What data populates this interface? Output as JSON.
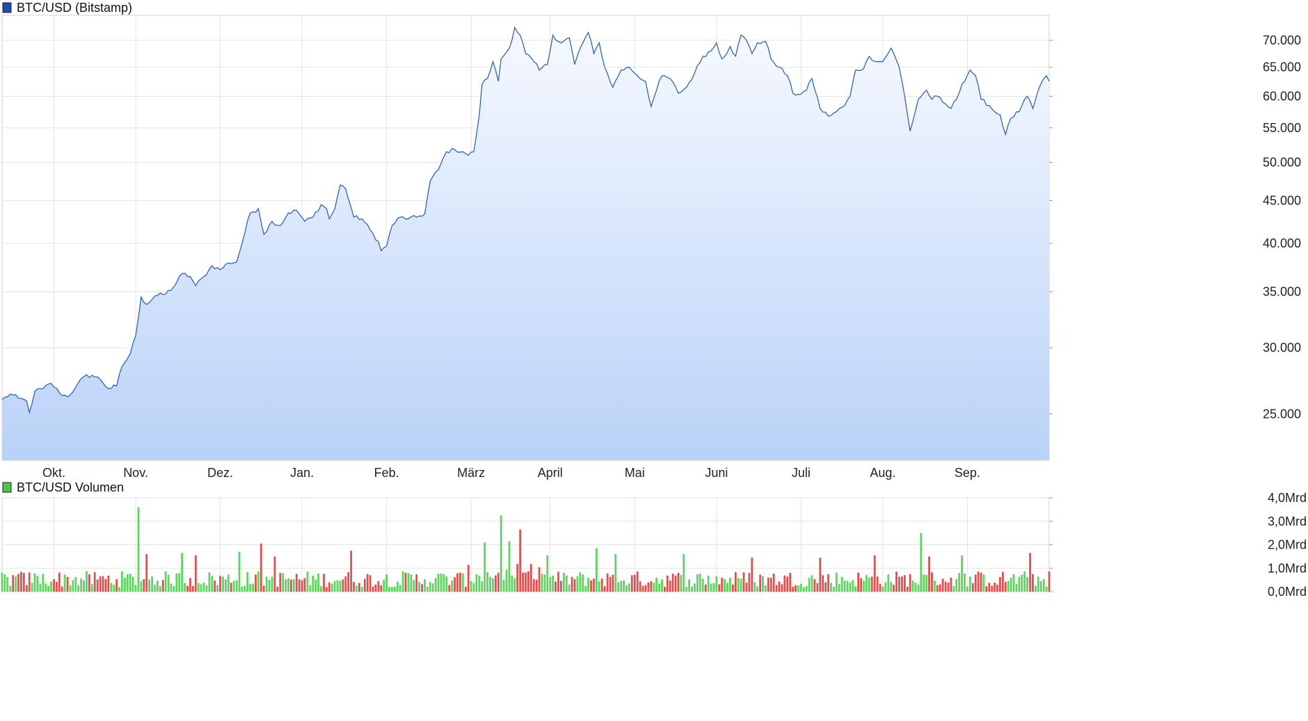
{
  "colors": {
    "price_line": "#2f64b4",
    "price_fill_top": "#f6f9fe",
    "price_fill_bottom": "#b9d2f8",
    "price_legend": "#1f4fa8",
    "volume_up": "#5fd35f",
    "volume_down": "#dc5050",
    "volume_legend": "#4cc44c",
    "grid": "#e3e3e3"
  },
  "chart_data": [
    {
      "type": "area",
      "title": "BTC/USD (Bitstamp)",
      "series": [
        {
          "name": "BTC/USD (Bitstamp)"
        }
      ],
      "y_scale": "log",
      "ylim": [
        22000,
        75000
      ],
      "y_ticks": [
        25000,
        30000,
        35000,
        40000,
        45000,
        50000,
        55000,
        60000,
        65000,
        70000
      ],
      "y_tick_labels": [
        "25.000",
        "30.000",
        "35.000",
        "40.000",
        "45.000",
        "50.000",
        "55.000",
        "60.000",
        "65.000",
        "70.000"
      ],
      "x_month_labels": [
        "Okt.",
        "Nov.",
        "Dez.",
        "Jan.",
        "Feb.",
        "März",
        "April",
        "Mai",
        "Juni",
        "Juli",
        "Aug.",
        "Sep."
      ],
      "x_month_start_day_index": [
        19,
        49,
        80,
        110,
        141,
        172,
        201,
        232,
        262,
        293,
        323,
        354
      ],
      "day_index_range": [
        0,
        376
      ],
      "anchors": [
        [
          0,
          26000
        ],
        [
          3,
          26400
        ],
        [
          6,
          26100
        ],
        [
          9,
          25900
        ],
        [
          10,
          25100
        ],
        [
          12,
          26600
        ],
        [
          15,
          26800
        ],
        [
          18,
          27200
        ],
        [
          21,
          26500
        ],
        [
          24,
          26200
        ],
        [
          27,
          26900
        ],
        [
          30,
          27700
        ],
        [
          33,
          27800
        ],
        [
          36,
          27500
        ],
        [
          39,
          26800
        ],
        [
          42,
          27000
        ],
        [
          44,
          28500
        ],
        [
          47,
          29500
        ],
        [
          49,
          31000
        ],
        [
          51,
          34500
        ],
        [
          53,
          33800
        ],
        [
          56,
          34600
        ],
        [
          60,
          34800
        ],
        [
          63,
          35500
        ],
        [
          66,
          36800
        ],
        [
          69,
          36500
        ],
        [
          71,
          35600
        ],
        [
          74,
          36500
        ],
        [
          77,
          37600
        ],
        [
          80,
          37200
        ],
        [
          83,
          37900
        ],
        [
          86,
          38000
        ],
        [
          88,
          40000
        ],
        [
          91,
          43500
        ],
        [
          94,
          44000
        ],
        [
          96,
          41000
        ],
        [
          99,
          42500
        ],
        [
          102,
          42000
        ],
        [
          105,
          43500
        ],
        [
          108,
          43800
        ],
        [
          111,
          42500
        ],
        [
          114,
          43000
        ],
        [
          117,
          44500
        ],
        [
          119,
          44000
        ],
        [
          120,
          42800
        ],
        [
          122,
          44000
        ],
        [
          124,
          47000
        ],
        [
          126,
          46500
        ],
        [
          129,
          43000
        ],
        [
          132,
          42800
        ],
        [
          135,
          41500
        ],
        [
          138,
          40200
        ],
        [
          139,
          39200
        ],
        [
          141,
          39700
        ],
        [
          143,
          42000
        ],
        [
          146,
          43000
        ],
        [
          149,
          42800
        ],
        [
          152,
          43000
        ],
        [
          155,
          43400
        ],
        [
          157,
          47500
        ],
        [
          160,
          49000
        ],
        [
          163,
          51500
        ],
        [
          166,
          51800
        ],
        [
          169,
          51500
        ],
        [
          171,
          51000
        ],
        [
          173,
          51500
        ],
        [
          175,
          57000
        ],
        [
          176,
          62000
        ],
        [
          178,
          63000
        ],
        [
          180,
          66000
        ],
        [
          182,
          62500
        ],
        [
          183,
          66500
        ],
        [
          186,
          68500
        ],
        [
          188,
          72500
        ],
        [
          190,
          71000
        ],
        [
          192,
          67500
        ],
        [
          195,
          66000
        ],
        [
          197,
          64500
        ],
        [
          200,
          65500
        ],
        [
          202,
          71000
        ],
        [
          205,
          69500
        ],
        [
          208,
          70500
        ],
        [
          210,
          65500
        ],
        [
          212,
          68500
        ],
        [
          215,
          71500
        ],
        [
          217,
          67500
        ],
        [
          219,
          69500
        ],
        [
          221,
          65000
        ],
        [
          224,
          61500
        ],
        [
          227,
          64500
        ],
        [
          230,
          65000
        ],
        [
          233,
          63500
        ],
        [
          236,
          62500
        ],
        [
          238,
          58300
        ],
        [
          240,
          61000
        ],
        [
          242,
          63500
        ],
        [
          245,
          63000
        ],
        [
          248,
          60500
        ],
        [
          251,
          61500
        ],
        [
          254,
          64000
        ],
        [
          257,
          67000
        ],
        [
          260,
          68000
        ],
        [
          262,
          69500
        ],
        [
          264,
          66500
        ],
        [
          267,
          68800
        ],
        [
          269,
          67000
        ],
        [
          271,
          71000
        ],
        [
          273,
          70000
        ],
        [
          275,
          67500
        ],
        [
          277,
          69500
        ],
        [
          280,
          69800
        ],
        [
          282,
          66500
        ],
        [
          285,
          65000
        ],
        [
          288,
          63500
        ],
        [
          290,
          60500
        ],
        [
          292,
          60300
        ],
        [
          295,
          61000
        ],
        [
          297,
          63000
        ],
        [
          300,
          58000
        ],
        [
          303,
          56800
        ],
        [
          306,
          57500
        ],
        [
          309,
          58500
        ],
        [
          311,
          60000
        ],
        [
          313,
          64500
        ],
        [
          316,
          64800
        ],
        [
          318,
          67000
        ],
        [
          321,
          66000
        ],
        [
          323,
          66000
        ],
        [
          326,
          68500
        ],
        [
          329,
          65000
        ],
        [
          331,
          60000
        ],
        [
          333,
          54500
        ],
        [
          334,
          56000
        ],
        [
          336,
          59500
        ],
        [
          339,
          61000
        ],
        [
          341,
          59500
        ],
        [
          343,
          60000
        ],
        [
          345,
          59000
        ],
        [
          348,
          58000
        ],
        [
          350,
          59500
        ],
        [
          352,
          62000
        ],
        [
          355,
          64500
        ],
        [
          357,
          63500
        ],
        [
          359,
          59500
        ],
        [
          362,
          58500
        ],
        [
          364,
          57500
        ],
        [
          366,
          57000
        ],
        [
          368,
          54000
        ],
        [
          370,
          56500
        ],
        [
          373,
          57500
        ],
        [
          376,
          60000
        ],
        [
          378,
          58000
        ],
        [
          380,
          61000
        ],
        [
          382,
          63000
        ],
        [
          383,
          63500
        ],
        [
          384,
          62500
        ]
      ]
    },
    {
      "type": "bar",
      "title": "BTC/USD Volumen",
      "series": [
        {
          "name": "BTC/USD Volumen"
        }
      ],
      "ylim": [
        0,
        4
      ],
      "y_ticks": [
        0,
        1,
        2,
        3,
        4
      ],
      "y_tick_labels": [
        "0,0Mrd",
        "1,0Mrd",
        "2,0Mrd",
        "3,0Mrd",
        "4,0Mrd"
      ],
      "peaks": [
        [
          50,
          3.6
        ],
        [
          53,
          1.6
        ],
        [
          66,
          1.65
        ],
        [
          71,
          1.55
        ],
        [
          87,
          1.7
        ],
        [
          95,
          2.05
        ],
        [
          100,
          1.5
        ],
        [
          128,
          1.75
        ],
        [
          177,
          2.1
        ],
        [
          183,
          3.25
        ],
        [
          186,
          2.15
        ],
        [
          190,
          2.65
        ],
        [
          200,
          1.55
        ],
        [
          218,
          1.85
        ],
        [
          225,
          1.6
        ],
        [
          250,
          1.6
        ],
        [
          275,
          1.45
        ],
        [
          300,
          1.45
        ],
        [
          320,
          1.55
        ],
        [
          337,
          2.5
        ],
        [
          340,
          1.5
        ],
        [
          352,
          1.55
        ],
        [
          377,
          1.65
        ]
      ],
      "base_level": 0.55
    }
  ]
}
